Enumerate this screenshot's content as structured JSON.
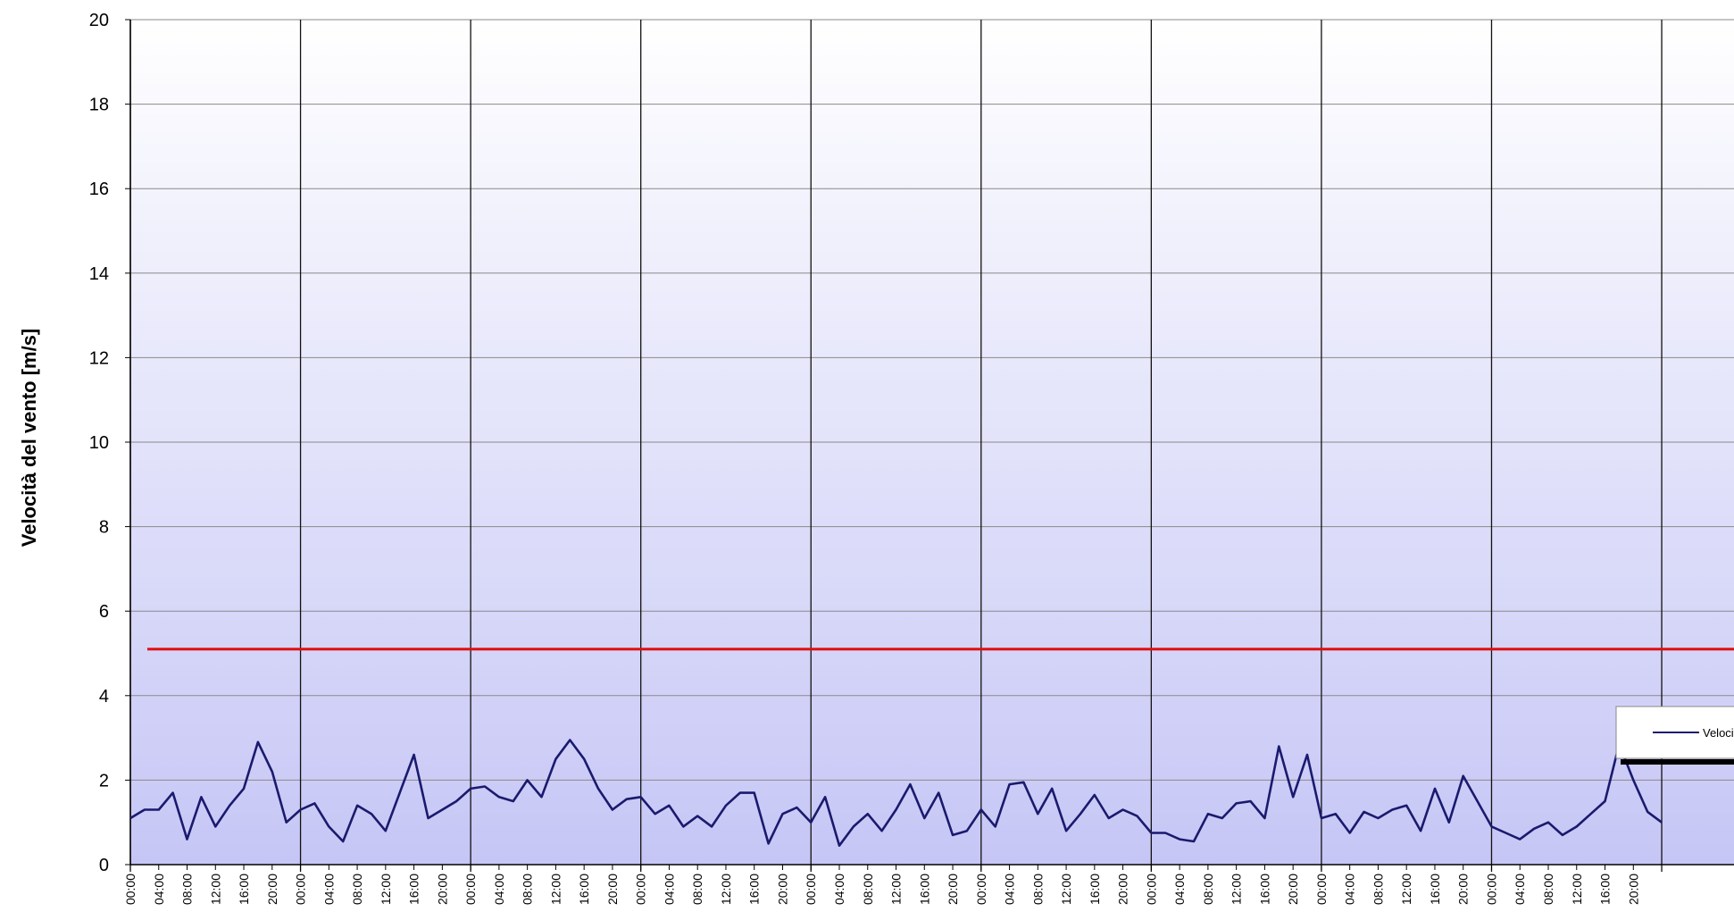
{
  "chart_data": {
    "type": "line",
    "y_label": "Velocità del vento [m/s]",
    "categories": [
      "00:00",
      null,
      "04:00",
      null,
      "08:00",
      null,
      "12:00",
      null,
      "16:00",
      null,
      "20:00",
      null,
      "00:00",
      null,
      "04:00",
      null,
      "08:00",
      null,
      "12:00",
      null,
      "16:00",
      null,
      "20:00",
      null,
      "00:00",
      null,
      "04:00",
      null,
      "08:00",
      null,
      "12:00",
      null,
      "16:00",
      null,
      "20:00",
      null,
      "00:00",
      null,
      "04:00",
      null,
      "08:00",
      null,
      "12:00",
      null,
      "16:00",
      null,
      "20:00",
      null,
      "00:00",
      null,
      "04:00",
      null,
      "08:00",
      null,
      "12:00",
      null,
      "16:00",
      null,
      "20:00",
      null,
      "00:00",
      null,
      "04:00",
      null,
      "08:00",
      null,
      "12:00",
      null,
      "16:00",
      null,
      "20:00",
      null,
      "00:00",
      null,
      "04:00",
      null,
      "08:00",
      null,
      "12:00",
      null,
      "16:00",
      null,
      "20:00",
      null,
      "00:00",
      null,
      "04:00",
      null,
      "08:00",
      null,
      "12:00",
      null,
      "16:00",
      null,
      "20:00",
      null,
      "00:00",
      null,
      "04:00",
      null,
      "08:00",
      null,
      "12:00",
      null,
      "16:00",
      null,
      "20:00",
      null,
      null,
      null,
      null,
      null,
      null,
      null,
      null,
      null,
      null,
      null,
      null,
      null,
      null
    ],
    "day_every": 12,
    "series": [
      {
        "name": "Velocità del vento",
        "color": "#1a1a6e",
        "values": [
          1.1,
          1.3,
          1.3,
          1.7,
          0.6,
          1.6,
          0.9,
          1.4,
          1.8,
          2.9,
          2.2,
          1.0,
          1.3,
          1.45,
          0.9,
          0.55,
          1.4,
          1.2,
          0.8,
          1.7,
          2.6,
          1.1,
          1.3,
          1.5,
          1.8,
          1.85,
          1.6,
          1.5,
          2.0,
          1.6,
          2.5,
          2.95,
          2.5,
          1.8,
          1.3,
          1.55,
          1.6,
          1.2,
          1.4,
          0.9,
          1.15,
          0.9,
          1.4,
          1.7,
          1.7,
          0.5,
          1.2,
          1.35,
          1.0,
          1.6,
          0.45,
          0.9,
          1.2,
          0.8,
          1.3,
          1.9,
          1.1,
          1.7,
          0.7,
          0.8,
          1.3,
          0.9,
          1.9,
          1.95,
          1.2,
          1.8,
          0.8,
          1.2,
          1.65,
          1.1,
          1.3,
          1.15,
          0.75,
          0.75,
          0.6,
          0.55,
          1.2,
          1.1,
          1.45,
          1.5,
          1.1,
          2.8,
          1.6,
          2.6,
          1.1,
          1.2,
          0.75,
          1.25,
          1.1,
          1.3,
          1.4,
          0.8,
          1.8,
          1.0,
          2.1,
          1.5,
          0.9,
          0.75,
          0.6,
          0.85,
          1.0,
          0.7,
          0.9,
          1.2,
          1.5,
          2.85,
          2.0,
          1.25,
          1.0,
          null,
          null,
          null,
          null,
          null,
          null,
          null,
          null,
          null,
          null,
          null,
          null
        ]
      }
    ],
    "reference_line": {
      "value": 5.1,
      "color": "#e01010"
    },
    "ylim": [
      0,
      20
    ],
    "yticks": [
      0,
      2,
      4,
      6,
      8,
      10,
      12,
      14,
      16,
      18,
      20
    ],
    "grid": true
  }
}
